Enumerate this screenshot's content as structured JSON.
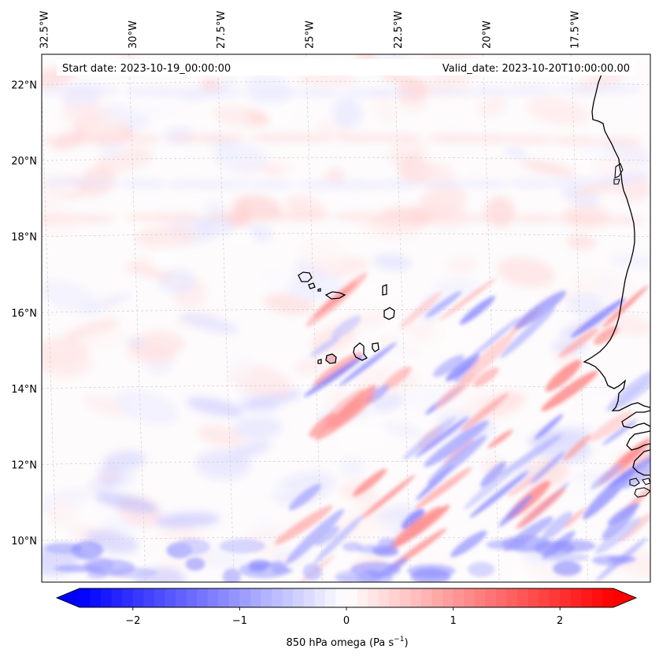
{
  "map": {
    "start_date_label": "Start date: 2023-10-19_00:00:00",
    "valid_date_label": "Valid_date: 2023-10-20T10:00:00.00",
    "lon_ticks": [
      {
        "label": "32.5°W",
        "lon": -32.5
      },
      {
        "label": "30°W",
        "lon": -30
      },
      {
        "label": "27.5°W",
        "lon": -27.5
      },
      {
        "label": "25°W",
        "lon": -25
      },
      {
        "label": "22.5°W",
        "lon": -22.5
      },
      {
        "label": "20°W",
        "lon": -20
      },
      {
        "label": "17.5°W",
        "lon": -17.5
      }
    ],
    "lat_ticks": [
      {
        "label": "22°N",
        "lat": 22
      },
      {
        "label": "20°N",
        "lat": 20
      },
      {
        "label": "18°N",
        "lat": 18
      },
      {
        "label": "16°N",
        "lat": 16
      },
      {
        "label": "14°N",
        "lat": 14
      },
      {
        "label": "12°N",
        "lat": 12
      },
      {
        "label": "10°N",
        "lat": 10
      }
    ],
    "lon_range": [
      -32.8,
      -15.6
    ],
    "lat_range": [
      8.9,
      22.8
    ],
    "field": "850 hPa omega",
    "gridlines": "dashed, light grey"
  },
  "colorbar": {
    "label_prefix": "850 hPa omega (Pa s",
    "label_exponent": "−1",
    "label_suffix": ")",
    "ticks": [
      {
        "label": "−2",
        "value": -2
      },
      {
        "label": "−1",
        "value": -1
      },
      {
        "label": "0",
        "value": 0
      },
      {
        "label": "1",
        "value": 1
      },
      {
        "label": "2",
        "value": 2
      }
    ],
    "range": [
      -2.5,
      2.5
    ],
    "extend": "both",
    "colormap": "bwr",
    "color_low": "#0000ff",
    "color_mid": "#ffffff",
    "color_high": "#ff0000"
  }
}
